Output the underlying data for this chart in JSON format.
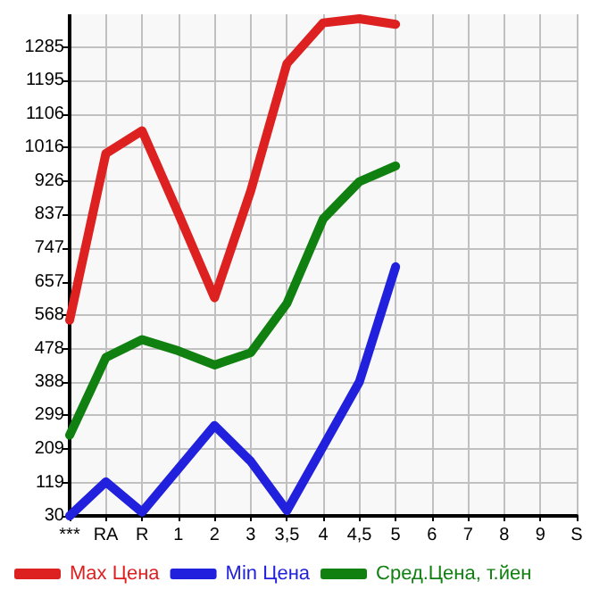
{
  "chart_data": {
    "type": "line",
    "categories": [
      "***",
      "RA",
      "R",
      "1",
      "2",
      "3",
      "3,5",
      "4",
      "4,5",
      "5",
      "6",
      "7",
      "8",
      "9",
      "S"
    ],
    "series": [
      {
        "name": "Max Цена",
        "color": "#dd2020",
        "values": [
          554,
          1000,
          1061,
          840,
          614,
          900,
          1241,
          1350,
          1361,
          1346,
          null,
          null,
          null,
          null,
          null
        ]
      },
      {
        "name": "Min Цена",
        "color": "#2020dd",
        "values": [
          30,
          121,
          40,
          156,
          272,
          176,
          44,
          216,
          389,
          697,
          null,
          null,
          null,
          null,
          null
        ]
      },
      {
        "name": "Сред.Цена, т.йен",
        "color": "#108010",
        "values": [
          246,
          454,
          502,
          472,
          434,
          467,
          599,
          825,
          925,
          967,
          null,
          null,
          null,
          null,
          null
        ]
      }
    ],
    "ylim": [
      30,
      1373
    ],
    "yticks": [
      30,
      119,
      209,
      299,
      388,
      478,
      568,
      657,
      747,
      837,
      926,
      1016,
      1106,
      1195,
      1285
    ],
    "grid": true,
    "legend": "bottom",
    "marker": "none",
    "line_style": "solid"
  }
}
